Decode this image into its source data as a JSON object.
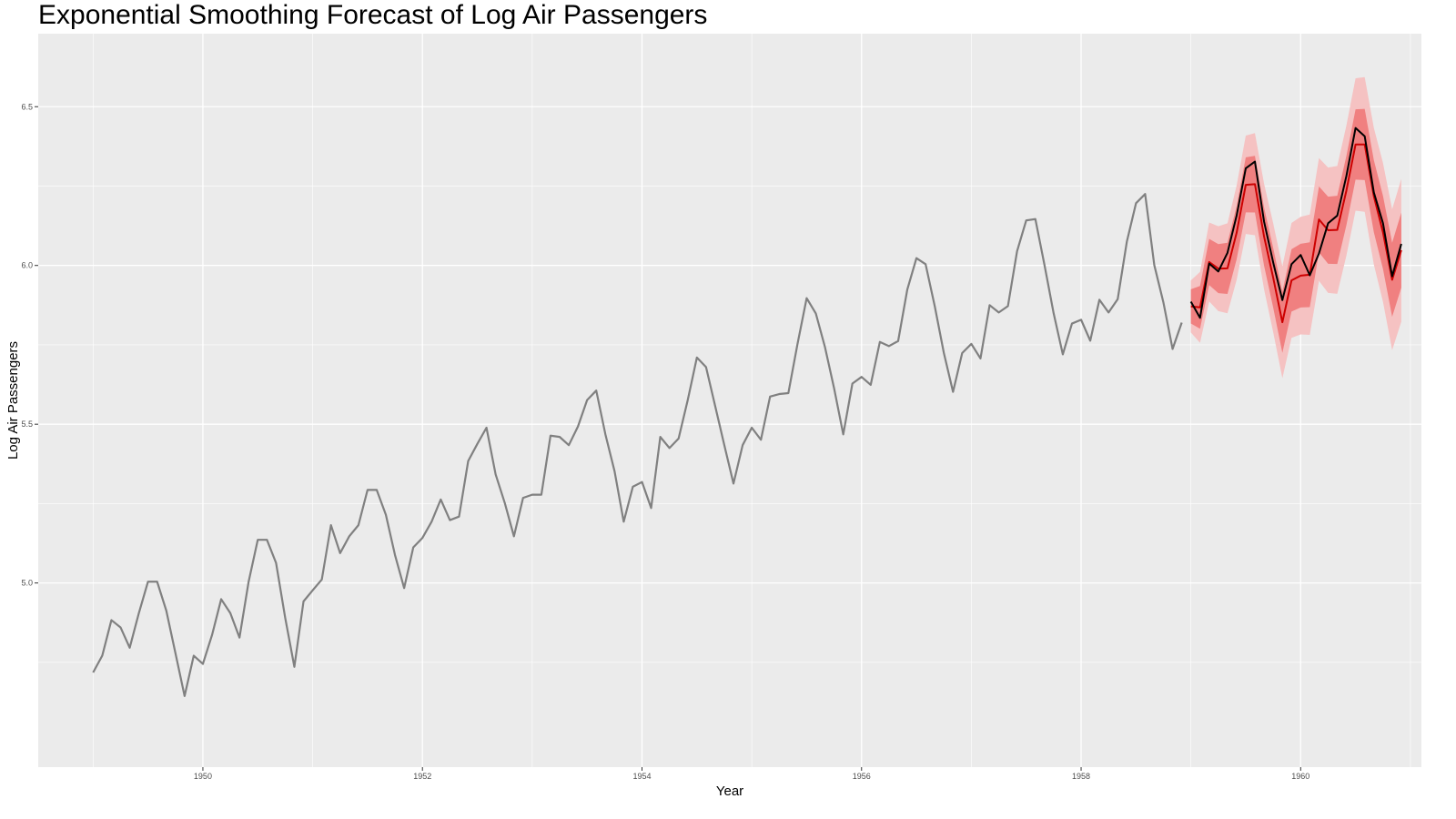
{
  "chart_data": {
    "type": "line",
    "title": "Exponential Smoothing Forecast of Log Air Passengers",
    "xlabel": "Year",
    "ylabel": "Log Air Passengers",
    "xlim": [
      1948.5,
      1961.1
    ],
    "ylim": [
      4.42,
      6.73
    ],
    "x_ticks": [
      1950,
      1952,
      1954,
      1956,
      1958,
      1960
    ],
    "x_tick_labels": [
      "1950",
      "1952",
      "1954",
      "1956",
      "1958",
      "1960"
    ],
    "y_ticks": [
      5.0,
      5.5,
      6.0,
      6.5
    ],
    "y_tick_labels": [
      "5.0",
      "5.5",
      "6.0",
      "6.5"
    ],
    "grid": true,
    "colors": {
      "panel_bg": "#ebebeb",
      "grid": "#ffffff",
      "history": "#808080",
      "forecast": "#cc0000",
      "actual": "#000000",
      "band_80": "#f08080",
      "band_95": "#f5c2c2"
    },
    "series": [
      {
        "start": 1949.0,
        "step": 0.0833333,
        "values": [
          4.718,
          4.771,
          4.883,
          4.86,
          4.796,
          4.905,
          5.004,
          5.004,
          4.913,
          4.779,
          4.644,
          4.771,
          4.745,
          4.836,
          4.949,
          4.905,
          4.828,
          5.004,
          5.136,
          5.136,
          5.063,
          4.89,
          4.736,
          4.942,
          4.977,
          5.011,
          5.182,
          5.094,
          5.147,
          5.182,
          5.293,
          5.293,
          5.215,
          5.088,
          4.984,
          5.112,
          5.142,
          5.193,
          5.263,
          5.198,
          5.209,
          5.384,
          5.438,
          5.489,
          5.342,
          5.252,
          5.147,
          5.268,
          5.278,
          5.278,
          5.464,
          5.46,
          5.434,
          5.493,
          5.576,
          5.606,
          5.468,
          5.352,
          5.193,
          5.303,
          5.318,
          5.236,
          5.46,
          5.425,
          5.455,
          5.576,
          5.71,
          5.68,
          5.557,
          5.434,
          5.313,
          5.434,
          5.489,
          5.451,
          5.587,
          5.595,
          5.598,
          5.753,
          5.897,
          5.849,
          5.743,
          5.613,
          5.468,
          5.628,
          5.649,
          5.624,
          5.759,
          5.746,
          5.762,
          5.924,
          6.023,
          6.004,
          5.872,
          5.724,
          5.602,
          5.724,
          5.753,
          5.707,
          5.875,
          5.852,
          5.872,
          6.045,
          6.142,
          6.146,
          6.001,
          5.849,
          5.72,
          5.817,
          5.829,
          5.763,
          5.892,
          5.852,
          5.894,
          6.075,
          6.196,
          6.225,
          6.001,
          5.883,
          5.737,
          5.82
        ]
      },
      {
        "start": 1959.0,
        "step": 0.0833333,
        "values": [
          5.871,
          5.868,
          6.011,
          5.99,
          5.991,
          6.103,
          6.254,
          6.256,
          6.091,
          5.961,
          5.821,
          5.953,
          5.968,
          5.971,
          6.145,
          6.111,
          6.112,
          6.236,
          6.381,
          6.381,
          6.218,
          6.104,
          5.955,
          6.048
        ]
      },
      {
        "start": 1959.0,
        "step": 0.0833333,
        "values": [
          5.886,
          5.835,
          6.006,
          5.981,
          6.04,
          6.157,
          6.306,
          6.327,
          6.138,
          6.009,
          5.891,
          6.004,
          6.033,
          5.969,
          6.038,
          6.133,
          6.157,
          6.282,
          6.433,
          6.407,
          6.23,
          6.133,
          5.966,
          6.068
        ]
      }
    ],
    "intervals": [
      {
        "level": 80,
        "lower_offset_start": 0.054,
        "lower_offset_end": 0.118,
        "upper_offset_start": 0.054,
        "upper_offset_end": 0.118
      },
      {
        "level": 95,
        "lower_offset_start": 0.082,
        "lower_offset_end": 0.225,
        "upper_offset_start": 0.082,
        "upper_offset_end": 0.225
      }
    ]
  }
}
